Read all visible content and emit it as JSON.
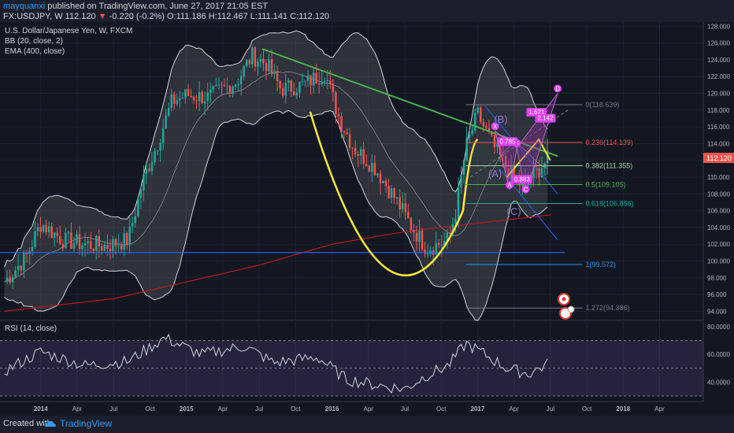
{
  "header": {
    "user": "mayquanxi",
    "published": "published on TradingView.com, June 27, 2017 21:05 EST",
    "symbol": "FX:USDJPY, W",
    "last": "112.120",
    "change": "-0.220 (-0.2%)",
    "ohlc": "O:111.186 H:112.467 L:111.141 C:112.120"
  },
  "legend": {
    "title": "U.S. Dollar/Japanese Yen, W, FXCM",
    "bb": "BB (20, close, 2)",
    "ema": "EMA (400, close)",
    "rsi": "RSI (14, close)"
  },
  "price_tag": "112.120",
  "fib_levels": [
    {
      "label": "0(118.639)",
      "value": 118.639,
      "color": "#787b86"
    },
    {
      "label": "0.236(114.139)",
      "value": 114.139,
      "color": "#ef5350"
    },
    {
      "label": "0.382(111.355)",
      "value": 111.355,
      "color": "#a5d6a7"
    },
    {
      "label": "0.5(109.105)",
      "value": 109.105,
      "color": "#4caf50"
    },
    {
      "label": "0.618(106.856)",
      "value": 106.856,
      "color": "#26a69a"
    },
    {
      "label": "1(99.572)",
      "value": 99.572,
      "color": "#2196f3"
    },
    {
      "label": "1.272(94.386)",
      "value": 94.386,
      "color": "#787b86"
    }
  ],
  "pattern_labels": {
    "X": "X",
    "A": "A",
    "B": "B",
    "C": "C",
    "D": "D",
    "r1": "0.785",
    "r2": "0.883",
    "r3": "1.621",
    "r4": "2.142",
    "wave_b": "(B)",
    "wave_a": "(A)",
    "wave_c": "(C)"
  },
  "footer": {
    "created_with": "Created with",
    "brand": "TradingView"
  },
  "chart_data": [
    {
      "type": "candlestick",
      "title": "U.S. Dollar/Japanese Yen, W, FXCM",
      "x_axis": [
        "2014",
        "Apr",
        "Jul",
        "Oct",
        "2015",
        "Apr",
        "Jul",
        "Oct",
        "2016",
        "Apr",
        "Jul",
        "Oct",
        "2017",
        "Apr",
        "Jul",
        "Oct",
        "2018",
        "Apr"
      ],
      "y_ticks": [
        "128.000",
        "126.000",
        "124.000",
        "122.000",
        "120.000",
        "118.000",
        "116.000",
        "114.000",
        "112.000",
        "110.000",
        "108.000",
        "106.000",
        "104.000",
        "102.000",
        "100.000",
        "98.000",
        "96.000",
        "94.000"
      ],
      "ylim": [
        93,
        128.5
      ],
      "grid": true,
      "series": [
        {
          "name": "Close (approx.)",
          "x": [
            2013.75,
            2013.9,
            2014.0,
            2014.15,
            2014.3,
            2014.45,
            2014.6,
            2014.7,
            2014.8,
            2014.9,
            2015.0,
            2015.15,
            2015.35,
            2015.45,
            2015.55,
            2015.65,
            2015.8,
            2015.95,
            2016.05,
            2016.15,
            2016.3,
            2016.45,
            2016.55,
            2016.65,
            2016.8,
            2016.85,
            2016.92,
            2017.0,
            2017.1,
            2017.2,
            2017.3,
            2017.4,
            2017.48
          ],
          "values": [
            97.5,
            100.5,
            104.5,
            102.5,
            102.0,
            101.8,
            102.5,
            109.5,
            114.0,
            119.0,
            119.8,
            119.5,
            121.5,
            124.5,
            123.5,
            120.5,
            121.0,
            122.5,
            117.0,
            113.5,
            111.0,
            107.0,
            104.0,
            101.5,
            102.5,
            106.0,
            113.5,
            117.5,
            114.0,
            111.0,
            109.0,
            110.5,
            112.12
          ]
        },
        {
          "name": "EMA (400, close) (approx.)",
          "x": [
            2013.75,
            2014.5,
            2015.0,
            2015.5,
            2016.0,
            2016.5,
            2017.0,
            2017.5
          ],
          "values": [
            94.0,
            95.5,
            97.5,
            99.5,
            102.0,
            103.5,
            104.5,
            105.5
          ]
        }
      ],
      "annotations": [
        "0(118.639)",
        "0.236(114.139)",
        "0.382(111.355)",
        "0.5(109.105)",
        "0.618(106.856)",
        "1(99.572)",
        "1.272(94.386)",
        "X",
        "A",
        "B",
        "C",
        "D",
        "(A)",
        "(B)",
        "(C)",
        "0.785",
        "0.883",
        "1.621",
        "2.142"
      ]
    },
    {
      "type": "line",
      "title": "RSI (14, close)",
      "y_ticks": [
        "80.0000",
        "60.0000",
        "40.0000"
      ],
      "ylim": [
        26,
        84
      ],
      "levels": [
        70,
        50,
        30
      ],
      "x": [
        2013.75,
        2014.0,
        2014.3,
        2014.6,
        2014.85,
        2015.1,
        2015.4,
        2015.6,
        2015.9,
        2016.1,
        2016.3,
        2016.5,
        2016.65,
        2016.8,
        2016.92,
        2017.05,
        2017.2,
        2017.35,
        2017.48
      ],
      "values": [
        48,
        62,
        52,
        55,
        72,
        60,
        66,
        54,
        58,
        42,
        38,
        35,
        45,
        52,
        68,
        60,
        50,
        46,
        53
      ]
    }
  ]
}
